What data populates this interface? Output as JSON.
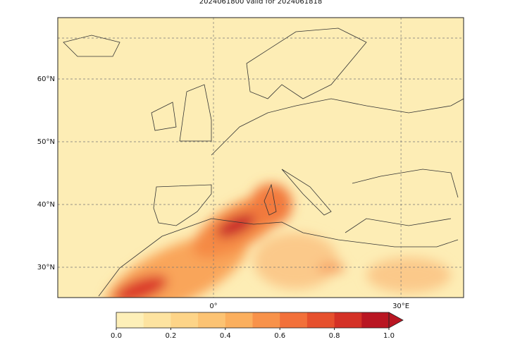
{
  "title": "2024061800 valid for 2024061818",
  "map": {
    "lat_labels": [
      {
        "value": 60,
        "label": "60°N"
      },
      {
        "value": 50,
        "label": "50°N"
      },
      {
        "value": 40,
        "label": "40°N"
      },
      {
        "value": 30,
        "label": "30°N"
      }
    ],
    "lon_labels": [
      {
        "value": 0,
        "label": "0°"
      },
      {
        "value": 30,
        "label": "30°E"
      }
    ]
  },
  "colorbar": {
    "lim": [
      0,
      1
    ],
    "ticks": [
      {
        "value": 0,
        "label": "0.0"
      },
      {
        "value": 0.2,
        "label": "0.2"
      },
      {
        "value": 0.4,
        "label": "0.4"
      },
      {
        "value": 0.6,
        "label": "0.6"
      },
      {
        "value": 0.8,
        "label": "0.8"
      },
      {
        "value": 1,
        "label": "1.0"
      }
    ],
    "colors": [
      "#fdefb8",
      "#fde3a0",
      "#fdd488",
      "#fcc373",
      "#fbaf5e",
      "#f8924a",
      "#f2703a",
      "#e6502d",
      "#d43126",
      "#b91622"
    ]
  }
}
